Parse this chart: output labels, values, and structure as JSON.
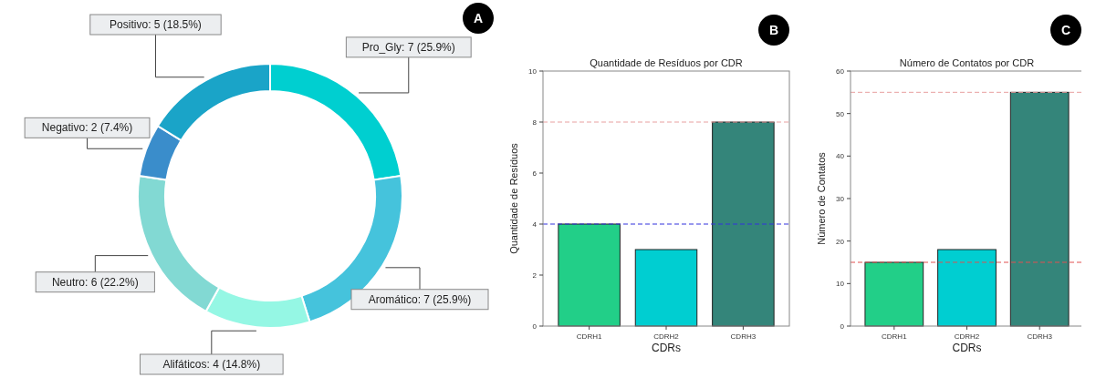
{
  "chart_data": [
    {
      "type": "donut",
      "annotations": [
        "A"
      ],
      "categories": [
        "Pro_Gly",
        "Aromático",
        "Alifáticos",
        "Neutro",
        "Negativo",
        "Positivo"
      ],
      "values": [
        7,
        7,
        4,
        6,
        2,
        5
      ],
      "value_labels": [
        "7 (25.9%)",
        "7 (25.9%)",
        "4 (14.8%)",
        "6 (22.2%)",
        "2 (7.4%)",
        "5 (18.5%)"
      ],
      "colors": [
        "#00cfd0",
        "#45c3dc",
        "#95f7e4",
        "#82d9d3",
        "#3a8dcb",
        "#1aa4c8"
      ]
    },
    {
      "type": "bar",
      "title": "Quantidade de Resíduos por CDR",
      "xlabel": "CDRs",
      "ylabel": "Quantidade de Resíduos",
      "annotations": [
        "B"
      ],
      "categories": [
        "CDRH1",
        "CDRH2",
        "CDRH3"
      ],
      "values": [
        4,
        3,
        8
      ],
      "colors": [
        "#22cf88",
        "#00ced1",
        "#34857a"
      ],
      "ylim": [
        0,
        10
      ],
      "yticks": [
        0,
        2,
        4,
        6,
        8,
        10
      ],
      "grid": false,
      "ref_lines": [
        {
          "axis": "y",
          "value": 8,
          "color": "#e8a0a0",
          "line_style": "dashed"
        },
        {
          "axis": "y",
          "value": 4,
          "color": "#3333dd",
          "line_style": "dashed"
        }
      ]
    },
    {
      "type": "bar",
      "title": "Número de Contatos por CDR",
      "xlabel": "CDRs",
      "ylabel": "Número de Contatos",
      "annotations": [
        "C"
      ],
      "categories": [
        "CDRH1",
        "CDRH2",
        "CDRH3"
      ],
      "values": [
        15,
        18,
        55
      ],
      "colors": [
        "#22cf88",
        "#00ced1",
        "#34857a"
      ],
      "ylim": [
        0,
        60
      ],
      "yticks": [
        0,
        10,
        20,
        30,
        40,
        50,
        60
      ],
      "grid": false,
      "ref_lines": [
        {
          "axis": "y",
          "value": 55,
          "color": "#e8a0a0",
          "line_style": "dashed"
        },
        {
          "axis": "y",
          "value": 15,
          "color": "#e05050",
          "line_style": "dashed"
        }
      ]
    }
  ]
}
